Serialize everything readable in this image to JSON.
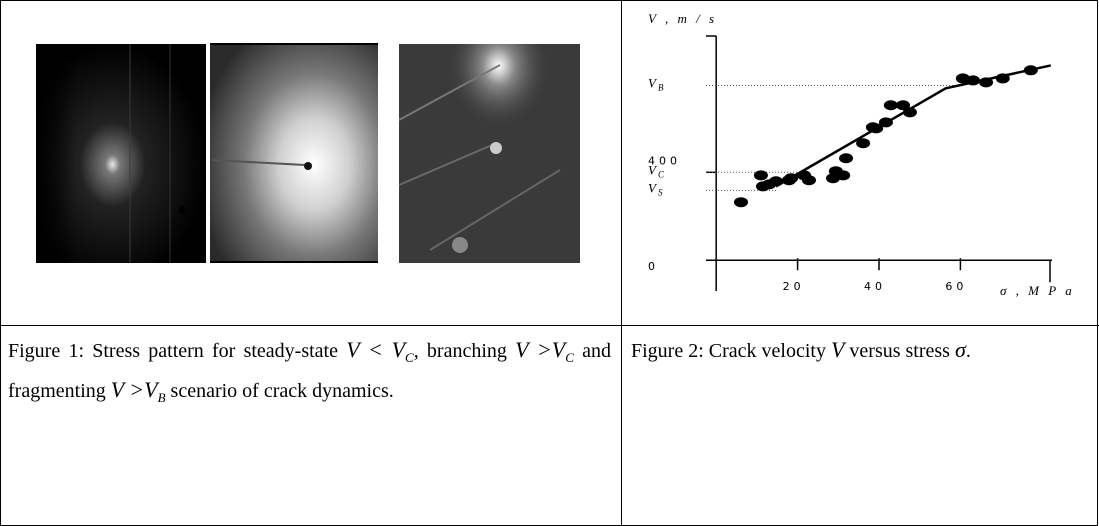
{
  "figure1": {
    "caption": [
      {
        "text": "Figure 1: Stress pattern for steady-state "
      },
      {
        "math": "V < V",
        "sub": "C"
      },
      {
        "text": ", branching "
      },
      {
        "math": "V >V",
        "sub": "C"
      },
      {
        "text": " and fragmenting "
      },
      {
        "math": "V >V",
        "sub": "B"
      },
      {
        "text": " scenario of crack dynamics."
      }
    ]
  },
  "figure2": {
    "chart_data": {
      "type": "scatter",
      "ylabel": "V , m / s",
      "xlabel": "σ , M P a",
      "xlim": [
        -2.5,
        82.5
      ],
      "ylim": [
        -140,
        1020
      ],
      "xticks": [
        20,
        40,
        60
      ],
      "yticks": [
        0,
        400
      ],
      "color": "#000000",
      "x": [
        6.1,
        11.0,
        11.5,
        13.0,
        14.7,
        17.9,
        18.4,
        21.6,
        22.8,
        28.7,
        29.4,
        31.2,
        31.9,
        36.1,
        38.5,
        39.3,
        41.7,
        42.9,
        45.9,
        47.6,
        60.6,
        63.1,
        66.3,
        70.4,
        77.3
      ],
      "y": [
        264,
        386,
        336,
        345,
        359,
        364,
        373,
        386,
        364,
        373,
        405,
        386,
        464,
        532,
        605,
        600,
        627,
        705,
        705,
        673,
        827,
        818,
        809,
        827,
        864
      ],
      "fit": {
        "x": [
          14.7,
          56.4,
          82.2
        ],
        "y": [
          336,
          782,
          886
        ]
      },
      "levels": [
        {
          "main": "V",
          "sub": "B",
          "value": 795
        },
        {
          "main": "V",
          "sub": "C",
          "value": 400
        },
        {
          "main": "V",
          "sub": "S",
          "value": 318
        }
      ]
    },
    "caption": [
      {
        "text": "Figure 2: Crack velocity "
      },
      {
        "math": "V"
      },
      {
        "text": " versus stress "
      },
      {
        "math": "σ"
      },
      {
        "text": "."
      }
    ]
  }
}
